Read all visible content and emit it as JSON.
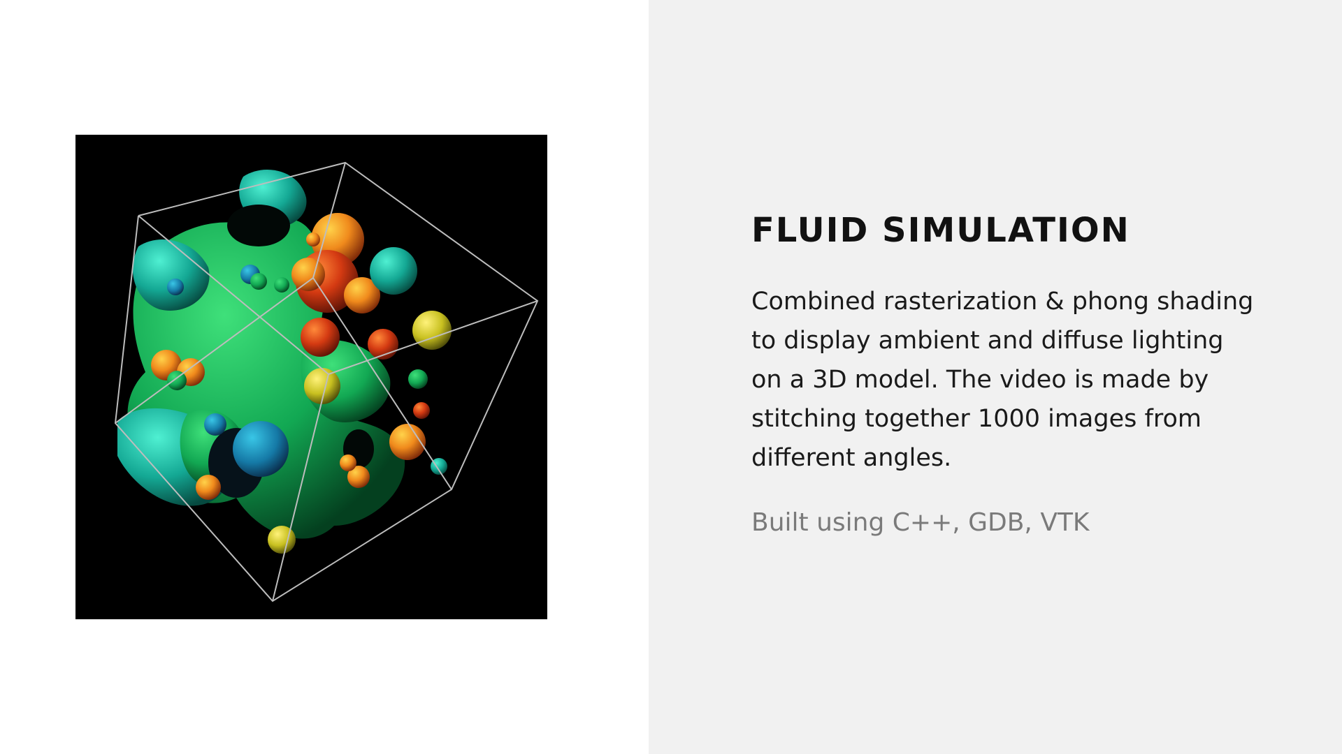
{
  "project": {
    "title": "FLUID SIMULATION",
    "description": "Combined rasterization & phong shading to display ambient and diffuse lighting on a 3D model. The video is made by stitching together 1000 images from different angles.",
    "tech": "Built using C++, GDB, VTK"
  },
  "colors": {
    "left_background": "#ffffff",
    "right_background": "#f1f1f1",
    "render_background": "#000000",
    "title": "#111111",
    "body_text": "#1a1a1a",
    "tech_text": "#7a7a7a"
  }
}
